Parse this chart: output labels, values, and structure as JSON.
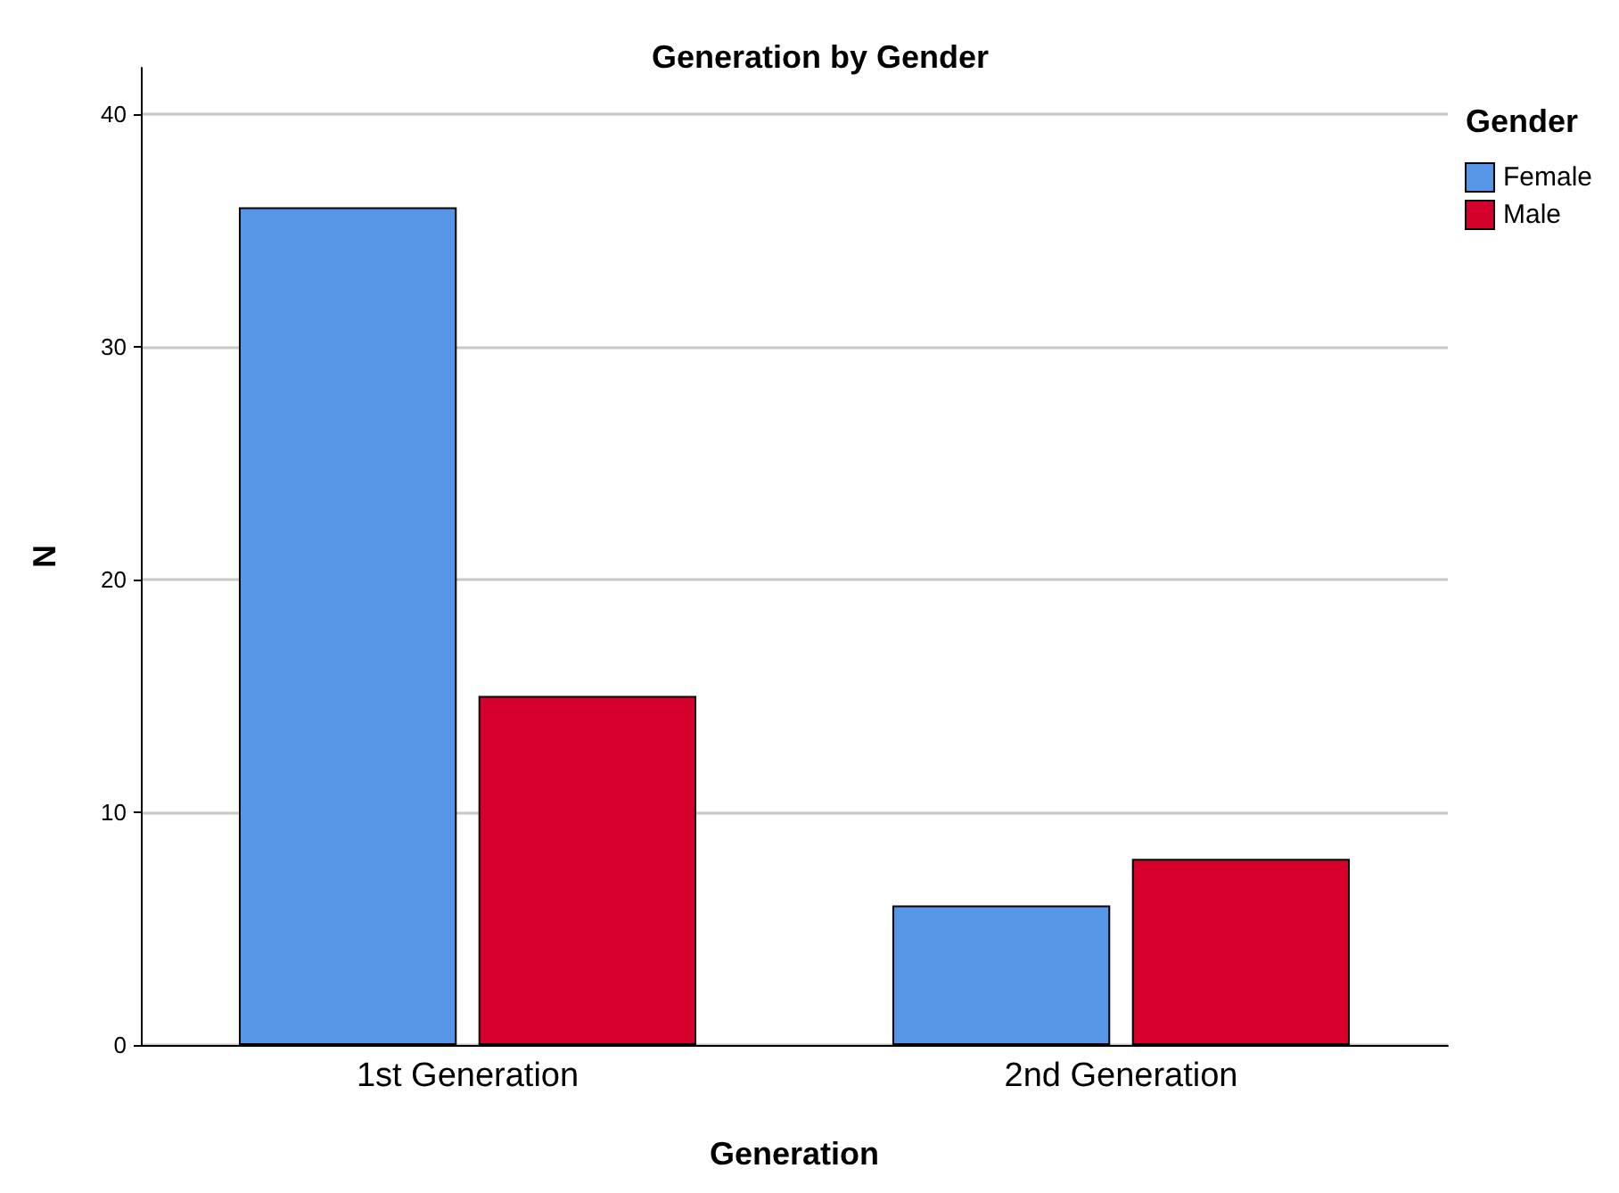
{
  "chart_data": {
    "type": "bar",
    "title": "Generation by Gender",
    "xlabel": "Generation",
    "ylabel": "N",
    "legend_title": "Gender",
    "categories": [
      "1st Generation",
      "2nd Generation"
    ],
    "series": [
      {
        "name": "Female",
        "color": "#5596e6",
        "values": [
          36,
          6
        ]
      },
      {
        "name": "Male",
        "color": "#d5002b",
        "values": [
          15,
          8
        ]
      }
    ],
    "ylim": [
      0,
      42
    ],
    "yticks": [
      0,
      10,
      20,
      30,
      40
    ],
    "grid": "y",
    "legend": "top right"
  }
}
